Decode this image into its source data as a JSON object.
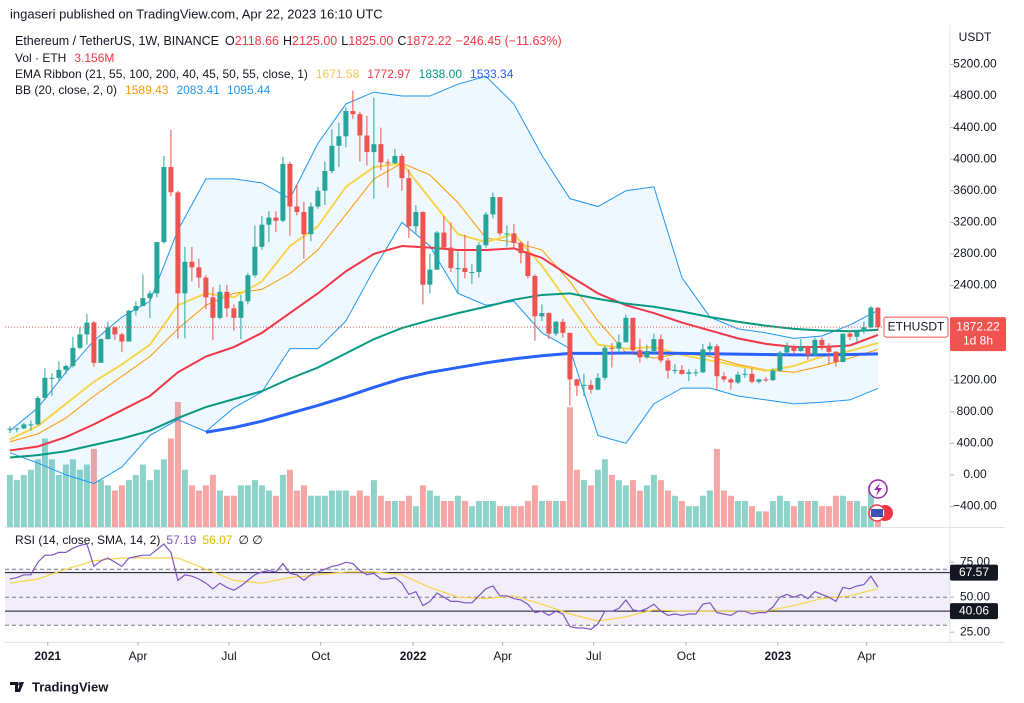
{
  "header": {
    "publisher": "ingaseri published on TradingView.com, Apr 22, 2023 16:10 UTC",
    "footer": "TradingView"
  },
  "legend": {
    "symbol": "Ethereum / TetherUS, 1W, BINANCE",
    "o_label": "O",
    "o": "2118.66",
    "h_label": "H",
    "h": "2125.00",
    "l_label": "L",
    "l": "1825.00",
    "c_label": "C",
    "c": "1872.22",
    "change": "−246.45 (−11.63%)",
    "vol_label": "Vol · ETH",
    "vol": "3.156M",
    "ema_label": "EMA Ribbon (21, 55, 100, 200, 40, 45, 50, 55, close, 1)",
    "ema_values": [
      "1671.58",
      "1772.97",
      "1838.00",
      "1533.34"
    ],
    "bb_label": "BB (20, close, 2, 0)",
    "bb_values": [
      "1589.43",
      "2083.41",
      "1095.44"
    ],
    "rsi_label": "RSI (14, close, SMA, 14, 2)",
    "rsi_values": [
      "57.19",
      "56.07"
    ],
    "rsi_extra": "∅  ∅"
  },
  "price_tag": {
    "symbol": "ETHUSDT",
    "price": "1872.22",
    "countdown": "1d 8h"
  },
  "chart_data": {
    "type": "candlestick",
    "y_unit": "USDT",
    "up_color": "#26a69a",
    "down_color": "#ef5350",
    "volume_up_color": "#8ed3ca",
    "volume_down_color": "#f6a6a4",
    "xlim": [
      -0.7,
      134.3
    ],
    "ylim": [
      -660,
      5700
    ],
    "grid": false,
    "xticks": [
      {
        "value": 5.4,
        "label": "2021"
      },
      {
        "value": 18.3,
        "label": "Apr"
      },
      {
        "value": 31.3,
        "label": "Jul"
      },
      {
        "value": 44.4,
        "label": "Oct"
      },
      {
        "value": 57.6,
        "label": "2022"
      },
      {
        "value": 70.4,
        "label": "Apr"
      },
      {
        "value": 83.4,
        "label": "Jul"
      },
      {
        "value": 96.6,
        "label": "Oct"
      },
      {
        "value": 109.7,
        "label": "2023"
      },
      {
        "value": 122.4,
        "label": "Apr"
      }
    ],
    "yticks": [
      {
        "value": 5200,
        "label": "5200.00"
      },
      {
        "value": 4800,
        "label": "4800.00"
      },
      {
        "value": 4400,
        "label": "4400.00"
      },
      {
        "value": 4000,
        "label": "4000.00"
      },
      {
        "value": 3600,
        "label": "3600.00"
      },
      {
        "value": 3200,
        "label": "3200.00"
      },
      {
        "value": 2800,
        "label": "2800.00"
      },
      {
        "value": 2400,
        "label": "2400.00"
      },
      {
        "value": 1200,
        "label": "1200.00"
      },
      {
        "value": 800,
        "label": "800.00"
      },
      {
        "value": 400,
        "label": "400.00"
      },
      {
        "value": 0,
        "label": "0.00"
      },
      {
        "value": -400,
        "label": "−400.00"
      }
    ],
    "open": [
      575,
      585,
      590,
      640,
      640,
      975,
      1230,
      1230,
      1330,
      1380,
      1610,
      1780,
      1930,
      1420,
      1720,
      1870,
      1780,
      1690,
      2080,
      2140,
      2240,
      2300,
      2950,
      3900,
      3580,
      2300,
      2700,
      2630,
      2500,
      2250,
      1990,
      2320,
      2110,
      1990,
      2200,
      2530,
      2890,
      3170,
      3260,
      3220,
      3940,
      3400,
      3330,
      3050,
      3400,
      3600,
      3850,
      4170,
      4290,
      4610,
      4570,
      4300,
      4090,
      4190,
      3960,
      3950,
      4040,
      3760,
      3150,
      3330,
      2410,
      2600,
      3070,
      2880,
      2620,
      2620,
      2570,
      2570,
      2910,
      3300,
      3520,
      3060,
      3060,
      2940,
      2810,
      2520,
      2010,
      2050,
      1790,
      1940,
      1800,
      1210,
      1130,
      1140,
      1080,
      1230,
      1610,
      1600,
      1680,
      1990,
      1580,
      1490,
      1570,
      1720,
      1450,
      1320,
      1330,
      1280,
      1300,
      1300,
      1590,
      1630,
      1250,
      1210,
      1170,
      1270,
      1280,
      1180,
      1210,
      1200,
      1320,
      1550,
      1630,
      1570,
      1630,
      1520,
      1710,
      1640,
      1560,
      1430,
      1790,
      1750,
      1820,
      1870,
      2118.66
    ],
    "high": [
      620,
      600,
      660,
      690,
      1000,
      1350,
      1290,
      1440,
      1400,
      1750,
      1870,
      2040,
      1950,
      1730,
      1940,
      1880,
      1800,
      2090,
      2200,
      2540,
      2330,
      2950,
      4040,
      4370,
      3600,
      2890,
      2890,
      2740,
      2530,
      2380,
      2410,
      2410,
      2160,
      2280,
      2560,
      3160,
      3280,
      3340,
      3340,
      4030,
      3970,
      3680,
      3460,
      3450,
      3650,
      3970,
      4380,
      4460,
      4660,
      4870,
      4600,
      4550,
      4780,
      4400,
      4000,
      4130,
      4070,
      3870,
      3420,
      3340,
      2800,
      3090,
      3280,
      3200,
      2830,
      3040,
      2670,
      2950,
      3330,
      3580,
      3520,
      3160,
      3180,
      2960,
      2960,
      2540,
      2160,
      2060,
      1950,
      1980,
      1800,
      1220,
      1280,
      1200,
      1290,
      1640,
      1670,
      1780,
      2030,
      1990,
      1720,
      1650,
      1790,
      1780,
      1480,
      1400,
      1390,
      1340,
      1340,
      1660,
      1680,
      1660,
      1300,
      1230,
      1310,
      1350,
      1350,
      1220,
      1240,
      1350,
      1570,
      1680,
      1650,
      1720,
      1640,
      1740,
      1740,
      1670,
      1570,
      1790,
      1830,
      1830,
      1940,
      2140,
      2125
    ],
    "low": [
      530,
      540,
      580,
      560,
      630,
      950,
      1000,
      1190,
      1280,
      1360,
      1590,
      1650,
      1370,
      1420,
      1720,
      1710,
      1560,
      1690,
      2020,
      2140,
      1990,
      2250,
      2930,
      3530,
      1730,
      1730,
      2450,
      2370,
      2100,
      1710,
      1970,
      2000,
      1830,
      1720,
      2160,
      2500,
      2850,
      2950,
      3080,
      3200,
      3030,
      3290,
      2740,
      2960,
      3370,
      3420,
      3820,
      3900,
      4150,
      4510,
      3970,
      3920,
      3500,
      3860,
      3640,
      3940,
      3600,
      3000,
      3050,
      2160,
      2300,
      2600,
      2860,
      2570,
      2300,
      2490,
      2420,
      2500,
      2880,
      3250,
      3030,
      2890,
      2860,
      2680,
      2490,
      1700,
      1950,
      1720,
      1760,
      1740,
      880,
      1000,
      1000,
      1030,
      1070,
      1200,
      1360,
      1550,
      1680,
      1540,
      1420,
      1470,
      1540,
      1420,
      1220,
      1280,
      1270,
      1190,
      1250,
      1290,
      1500,
      1080,
      1180,
      1080,
      1150,
      1230,
      1160,
      1160,
      1180,
      1190,
      1310,
      1510,
      1530,
      1560,
      1460,
      1510,
      1580,
      1400,
      1370,
      1430,
      1710,
      1680,
      1790,
      1860,
      1825
    ],
    "close": [
      585,
      590,
      640,
      640,
      975,
      1230,
      1230,
      1330,
      1380,
      1610,
      1780,
      1930,
      1420,
      1720,
      1870,
      1780,
      1690,
      2080,
      2140,
      2240,
      2300,
      2950,
      3900,
      3580,
      2300,
      2700,
      2630,
      2500,
      2250,
      1990,
      2320,
      2110,
      1990,
      2200,
      2530,
      2890,
      3170,
      3260,
      3220,
      3940,
      3400,
      3330,
      3050,
      3400,
      3600,
      3850,
      4170,
      4290,
      4610,
      4570,
      4300,
      4090,
      4190,
      3960,
      3950,
      4040,
      3760,
      3150,
      3330,
      2410,
      2600,
      3070,
      2880,
      2620,
      2620,
      2570,
      2570,
      2910,
      3300,
      3520,
      3060,
      3060,
      2940,
      2810,
      2520,
      2010,
      2050,
      1790,
      1940,
      1800,
      1210,
      1130,
      1140,
      1080,
      1230,
      1610,
      1600,
      1680,
      1990,
      1580,
      1490,
      1570,
      1720,
      1450,
      1320,
      1330,
      1280,
      1300,
      1300,
      1590,
      1630,
      1250,
      1210,
      1170,
      1270,
      1280,
      1180,
      1210,
      1200,
      1320,
      1550,
      1630,
      1570,
      1630,
      1520,
      1710,
      1640,
      1560,
      1430,
      1790,
      1750,
      1820,
      1870,
      2118.66,
      1872.22
    ],
    "volume": [
      10,
      9,
      10,
      11,
      13,
      17,
      13,
      10,
      12,
      13,
      11,
      12,
      15,
      9,
      8,
      7,
      8,
      9,
      10,
      12,
      9,
      11,
      13,
      17,
      24,
      11,
      8,
      7,
      8,
      10,
      7,
      6,
      6,
      8,
      8,
      9,
      8,
      7,
      6,
      10,
      11,
      7,
      8,
      6,
      6,
      6,
      7,
      7,
      7,
      6,
      7,
      6,
      9,
      6,
      5,
      5,
      5,
      6,
      4,
      8,
      7,
      6,
      5,
      5,
      6,
      5,
      4,
      5,
      5,
      5,
      4,
      4,
      4,
      4,
      5,
      8,
      5,
      5,
      5,
      5,
      23,
      11,
      9,
      8,
      11,
      13,
      10,
      9,
      8,
      9,
      7,
      8,
      10,
      9,
      7,
      6,
      5,
      4,
      4,
      6,
      7,
      15,
      7,
      6,
      5,
      5,
      4,
      3,
      3,
      5,
      6,
      5,
      4,
      5,
      5,
      5,
      4,
      4,
      6,
      6,
      5,
      5,
      4,
      8,
      3.156
    ],
    "line_x": [
      0,
      4,
      8,
      12,
      16,
      20,
      24,
      28,
      32,
      36,
      40,
      44,
      48,
      52,
      56,
      60,
      64,
      68,
      72,
      76,
      80,
      84,
      88,
      92,
      96,
      100,
      104,
      108,
      112,
      116,
      120,
      124
    ],
    "bb_fill": "#2196f3",
    "lines": [
      {
        "color": "#2196f3",
        "width": 1,
        "values": [
          560,
          850,
          1300,
          1700,
          2000,
          2200,
          3100,
          3750,
          3750,
          3700,
          3500,
          4200,
          4700,
          4850,
          4800,
          4800,
          4950,
          5050,
          4700,
          4050,
          3500,
          3400,
          3600,
          3650,
          2500,
          2000,
          1850,
          1800,
          1730,
          1760,
          1900,
          2083.41
        ]
      },
      {
        "color": "#2196f3",
        "width": 1,
        "values": [
          280,
          150,
          0,
          -110,
          100,
          500,
          700,
          550,
          850,
          1050,
          1600,
          1600,
          1950,
          2600,
          3200,
          2900,
          2300,
          2150,
          2200,
          1800,
          1600,
          500,
          400,
          900,
          1100,
          1100,
          1000,
          950,
          900,
          920,
          950,
          1095.44
        ]
      },
      {
        "color": "#ff9800",
        "width": 1,
        "values": [
          420,
          520,
          720,
          1000,
          1250,
          1500,
          1850,
          2150,
          2300,
          2350,
          2550,
          2850,
          3300,
          3750,
          3950,
          3800,
          3450,
          3000,
          2950,
          2850,
          2450,
          1950,
          1550,
          1480,
          1540,
          1500,
          1400,
          1330,
          1300,
          1380,
          1480,
          1589.43
        ]
      },
      {
        "color": "#f7d54a",
        "width": 2,
        "values": [
          450,
          620,
          900,
          1180,
          1400,
          1650,
          2150,
          2300,
          2250,
          2450,
          2900,
          3150,
          3650,
          3900,
          3950,
          3500,
          3050,
          2950,
          3050,
          2650,
          2150,
          1650,
          1600,
          1620,
          1520,
          1450,
          1380,
          1320,
          1380,
          1500,
          1570,
          1671.58
        ]
      },
      {
        "color": "#f23645",
        "width": 2,
        "values": [
          310,
          360,
          480,
          640,
          820,
          1000,
          1300,
          1500,
          1620,
          1800,
          2050,
          2300,
          2580,
          2800,
          2900,
          2880,
          2850,
          2850,
          2870,
          2750,
          2520,
          2300,
          2150,
          2050,
          1930,
          1830,
          1730,
          1660,
          1620,
          1620,
          1640,
          1772.97
        ]
      },
      {
        "color": "#089981",
        "width": 2,
        "values": [
          220,
          250,
          300,
          380,
          460,
          560,
          720,
          860,
          960,
          1060,
          1220,
          1360,
          1540,
          1720,
          1860,
          1960,
          2050,
          2130,
          2220,
          2280,
          2300,
          2230,
          2170,
          2130,
          2070,
          2000,
          1940,
          1890,
          1850,
          1830,
          1820,
          1838
        ]
      },
      {
        "color": "#2962ff",
        "width": 3,
        "values": [
          null,
          null,
          null,
          null,
          null,
          null,
          null,
          540,
          600,
          680,
          780,
          880,
          990,
          1110,
          1220,
          1300,
          1360,
          1420,
          1470,
          1510,
          1540,
          1540,
          1545,
          1545,
          1540,
          1535,
          1530,
          1525,
          1520,
          1520,
          1525,
          1533.34
        ]
      }
    ],
    "rsi": {
      "color": "#7e57c2",
      "ylim": [
        18,
        98
      ],
      "yticks": [
        {
          "value": 75,
          "label": "75.00"
        },
        {
          "value": 50,
          "label": "50.00"
        },
        {
          "value": 25,
          "label": "25.00"
        }
      ],
      "bands": [
        70,
        50,
        30
      ],
      "band_color": "#7e57c2",
      "values": [
        63,
        64,
        66,
        66,
        75,
        80,
        80,
        82,
        82,
        85,
        87,
        88,
        72,
        76,
        78,
        75,
        72,
        78,
        79,
        80,
        80,
        84,
        88,
        82,
        62,
        66,
        65,
        63,
        60,
        56,
        60,
        57,
        55,
        58,
        62,
        66,
        68,
        69,
        68,
        74,
        67,
        66,
        62,
        66,
        68,
        70,
        72,
        73,
        75,
        74,
        69,
        66,
        67,
        63,
        63,
        64,
        60,
        52,
        54,
        44,
        47,
        53,
        50,
        47,
        47,
        46,
        46,
        51,
        56,
        58,
        51,
        51,
        49,
        48,
        45,
        39,
        40,
        37,
        40,
        38,
        29,
        28,
        28,
        27,
        31,
        40,
        40,
        42,
        48,
        41,
        40,
        42,
        45,
        40,
        37,
        38,
        37,
        38,
        38,
        45,
        46,
        39,
        38,
        37,
        40,
        40,
        38,
        39,
        39,
        43,
        50,
        52,
        50,
        52,
        49,
        54,
        52,
        50,
        47,
        57,
        56,
        58,
        59,
        65,
        57.19
      ],
      "sma": {
        "color": "#f7d54a",
        "values": [
          60,
          63,
          70,
          76,
          78,
          78,
          78,
          70,
          62,
          60,
          64,
          66,
          68,
          68,
          66,
          57,
          50,
          49,
          51,
          45,
          38,
          33,
          36,
          41,
          40,
          40,
          40,
          40,
          44,
          49,
          51,
          56.07
        ]
      },
      "hlines": [
        {
          "value": 67.57,
          "label": "67.57"
        },
        {
          "value": 40.06,
          "label": "40.06"
        }
      ]
    }
  }
}
